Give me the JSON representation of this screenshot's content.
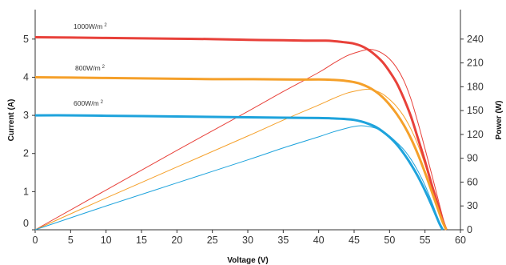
{
  "chart_data": {
    "type": "line",
    "title": "",
    "xlabel": "Voltage (V)",
    "ylabel_left": "Current (A)",
    "ylabel_right": "Power (W)",
    "xlim": [
      0,
      60
    ],
    "ylim_left": [
      0,
      5.5
    ],
    "ylim_right": [
      0,
      264
    ],
    "x_ticks": [
      "0",
      "5",
      "10",
      "15",
      "20",
      "25",
      "30",
      "35",
      "40",
      "45",
      "50",
      "55",
      "60"
    ],
    "y_left_ticks": [
      "0",
      "1",
      "2",
      "3",
      "4",
      "5"
    ],
    "y_right_ticks": [
      "0",
      "30",
      "60",
      "90",
      "120",
      "150",
      "180",
      "210",
      "240"
    ],
    "grid": false,
    "legend": "inline labels",
    "series": [
      {
        "label": "1000W/m",
        "label_sup": "2",
        "color": "#e8413a",
        "current": {
          "x": [
            0,
            5,
            10,
            15,
            20,
            25,
            30,
            35,
            38,
            40,
            41,
            42,
            43,
            44,
            45,
            46,
            47,
            48,
            49,
            50,
            51,
            52,
            53,
            54,
            55,
            56,
            57,
            57.5,
            58
          ],
          "y": [
            5.05,
            5.04,
            5.03,
            5.02,
            5.01,
            5.0,
            4.98,
            4.97,
            4.96,
            4.96,
            4.96,
            4.95,
            4.93,
            4.91,
            4.88,
            4.82,
            4.72,
            4.58,
            4.4,
            4.15,
            3.85,
            3.45,
            2.98,
            2.4,
            1.8,
            1.15,
            0.55,
            0.25,
            0
          ]
        },
        "power": {
          "x": [
            0,
            10,
            20,
            30,
            35,
            40,
            42,
            44,
            46,
            47,
            48,
            49,
            50,
            51,
            52,
            53,
            54,
            55,
            56,
            57,
            57.5,
            58
          ],
          "y": [
            0,
            50,
            100,
            149,
            174,
            198,
            209,
            219,
            225,
            227,
            226,
            222,
            215,
            204,
            188,
            165,
            135,
            102,
            68,
            33,
            16,
            0
          ]
        }
      },
      {
        "label": "800W/m",
        "label_sup": "2",
        "color": "#f5a02a",
        "current": {
          "x": [
            0,
            5,
            10,
            15,
            20,
            25,
            30,
            35,
            40,
            42,
            43,
            44,
            45,
            46,
            47,
            48,
            49,
            50,
            51,
            52,
            53,
            54,
            55,
            56,
            57,
            57.5,
            58
          ],
          "y": [
            4.0,
            3.99,
            3.98,
            3.97,
            3.96,
            3.95,
            3.95,
            3.94,
            3.94,
            3.93,
            3.92,
            3.9,
            3.87,
            3.82,
            3.74,
            3.63,
            3.48,
            3.28,
            3.04,
            2.75,
            2.4,
            1.98,
            1.5,
            0.98,
            0.45,
            0.2,
            0
          ]
        },
        "power": {
          "x": [
            0,
            10,
            20,
            30,
            35,
            40,
            42,
            44,
            46,
            47,
            48,
            49,
            50,
            51,
            52,
            53,
            54,
            55,
            56,
            57,
            57.5,
            58
          ],
          "y": [
            0,
            40,
            79,
            118,
            138,
            157,
            165,
            172,
            176,
            177,
            175,
            171,
            164,
            155,
            143,
            127,
            107,
            82,
            55,
            26,
            12,
            0
          ]
        }
      },
      {
        "label": "600W/m",
        "label_sup": "2",
        "color": "#1ea3dc",
        "current": {
          "x": [
            0,
            5,
            10,
            15,
            20,
            25,
            30,
            35,
            40,
            42,
            44,
            45,
            46,
            47,
            48,
            49,
            50,
            51,
            52,
            53,
            54,
            55,
            56,
            56.5,
            57,
            57.5
          ],
          "y": [
            3.0,
            3.0,
            2.99,
            2.98,
            2.97,
            2.96,
            2.95,
            2.94,
            2.93,
            2.92,
            2.9,
            2.88,
            2.84,
            2.78,
            2.7,
            2.58,
            2.43,
            2.24,
            2.0,
            1.72,
            1.4,
            1.03,
            0.62,
            0.4,
            0.18,
            0
          ]
        },
        "power": {
          "x": [
            0,
            10,
            20,
            30,
            35,
            40,
            42,
            44,
            45,
            46,
            47,
            48,
            49,
            50,
            51,
            52,
            53,
            54,
            55,
            56,
            56.5,
            57,
            57.5
          ],
          "y": [
            0,
            30,
            59,
            88,
            103,
            117,
            123,
            128,
            130,
            131,
            130,
            128,
            124,
            118,
            110,
            101,
            89,
            74,
            56,
            34,
            22,
            10,
            0
          ]
        }
      }
    ]
  }
}
